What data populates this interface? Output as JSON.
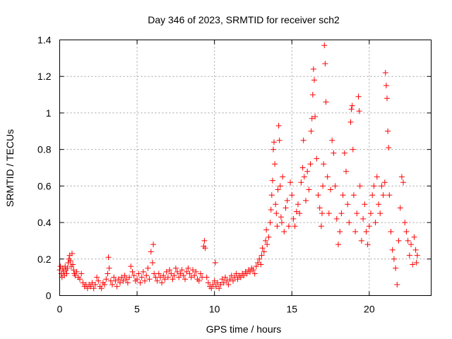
{
  "chart_data": {
    "type": "scatter",
    "title": "Day 346 of 2023, SRMTID for receiver sch2",
    "xlabel": "GPS time / hours",
    "ylabel": "SRMTID / TECUs",
    "xlim": [
      0,
      24
    ],
    "ylim": [
      0,
      1.4
    ],
    "xticks": [
      0,
      5,
      10,
      15,
      20
    ],
    "xtick_labels": [
      "0",
      "5",
      "10",
      "15",
      "20"
    ],
    "yticks": [
      0,
      0.2,
      0.4,
      0.6,
      0.8,
      1,
      1.2,
      1.4
    ],
    "ytick_labels": [
      "0",
      "0.2",
      "0.4",
      "0.6",
      "0.8",
      "1",
      "1.2",
      "1.4"
    ],
    "grid": true,
    "marker": "+",
    "marker_color": "#ff0000",
    "series": [
      {
        "name": "SRMTID",
        "points": [
          [
            0.0,
            0.14
          ],
          [
            0.05,
            0.16
          ],
          [
            0.1,
            0.12
          ],
          [
            0.15,
            0.1
          ],
          [
            0.2,
            0.15
          ],
          [
            0.25,
            0.13
          ],
          [
            0.3,
            0.11
          ],
          [
            0.35,
            0.16
          ],
          [
            0.4,
            0.14
          ],
          [
            0.45,
            0.12
          ],
          [
            0.5,
            0.15
          ],
          [
            0.55,
            0.18
          ],
          [
            0.6,
            0.2
          ],
          [
            0.65,
            0.22
          ],
          [
            0.7,
            0.19
          ],
          [
            0.75,
            0.16
          ],
          [
            0.8,
            0.23
          ],
          [
            0.85,
            0.17
          ],
          [
            0.9,
            0.14
          ],
          [
            0.95,
            0.12
          ],
          [
            1.0,
            0.11
          ],
          [
            1.1,
            0.13
          ],
          [
            1.2,
            0.1
          ],
          [
            1.3,
            0.09
          ],
          [
            1.4,
            0.12
          ],
          [
            1.5,
            0.07
          ],
          [
            1.6,
            0.05
          ],
          [
            1.7,
            0.06
          ],
          [
            1.8,
            0.04
          ],
          [
            1.9,
            0.06
          ],
          [
            2.0,
            0.05
          ],
          [
            2.1,
            0.07
          ],
          [
            2.2,
            0.04
          ],
          [
            2.3,
            0.06
          ],
          [
            2.4,
            0.1
          ],
          [
            2.5,
            0.08
          ],
          [
            2.6,
            0.05
          ],
          [
            2.7,
            0.04
          ],
          [
            2.8,
            0.07
          ],
          [
            2.9,
            0.06
          ],
          [
            3.0,
            0.09
          ],
          [
            3.1,
            0.12
          ],
          [
            3.15,
            0.21
          ],
          [
            3.2,
            0.15
          ],
          [
            3.3,
            0.08
          ],
          [
            3.4,
            0.06
          ],
          [
            3.5,
            0.1
          ],
          [
            3.6,
            0.08
          ],
          [
            3.7,
            0.05
          ],
          [
            3.8,
            0.09
          ],
          [
            3.9,
            0.07
          ],
          [
            4.0,
            0.1
          ],
          [
            4.1,
            0.08
          ],
          [
            4.2,
            0.11
          ],
          [
            4.3,
            0.09
          ],
          [
            4.4,
            0.07
          ],
          [
            4.5,
            0.1
          ],
          [
            4.6,
            0.16
          ],
          [
            4.7,
            0.13
          ],
          [
            4.8,
            0.11
          ],
          [
            4.9,
            0.08
          ],
          [
            5.0,
            0.09
          ],
          [
            5.1,
            0.12
          ],
          [
            5.2,
            0.07
          ],
          [
            5.3,
            0.1
          ],
          [
            5.4,
            0.13
          ],
          [
            5.5,
            0.08
          ],
          [
            5.6,
            0.11
          ],
          [
            5.7,
            0.15
          ],
          [
            5.8,
            0.09
          ],
          [
            5.9,
            0.24
          ],
          [
            6.0,
            0.18
          ],
          [
            6.05,
            0.28
          ],
          [
            6.1,
            0.12
          ],
          [
            6.2,
            0.1
          ],
          [
            6.3,
            0.08
          ],
          [
            6.4,
            0.12
          ],
          [
            6.5,
            0.1
          ],
          [
            6.6,
            0.07
          ],
          [
            6.7,
            0.11
          ],
          [
            6.8,
            0.09
          ],
          [
            6.9,
            0.13
          ],
          [
            7.0,
            0.1
          ],
          [
            7.1,
            0.14
          ],
          [
            7.2,
            0.12
          ],
          [
            7.3,
            0.09
          ],
          [
            7.4,
            0.11
          ],
          [
            7.5,
            0.15
          ],
          [
            7.6,
            0.13
          ],
          [
            7.7,
            0.1
          ],
          [
            7.8,
            0.12
          ],
          [
            7.9,
            0.14
          ],
          [
            8.0,
            0.11
          ],
          [
            8.1,
            0.09
          ],
          [
            8.2,
            0.13
          ],
          [
            8.3,
            0.15
          ],
          [
            8.4,
            0.12
          ],
          [
            8.5,
            0.1
          ],
          [
            8.6,
            0.14
          ],
          [
            8.7,
            0.11
          ],
          [
            8.8,
            0.13
          ],
          [
            8.9,
            0.09
          ],
          [
            9.0,
            0.08
          ],
          [
            9.1,
            0.12
          ],
          [
            9.2,
            0.1
          ],
          [
            9.3,
            0.27
          ],
          [
            9.35,
            0.3
          ],
          [
            9.4,
            0.26
          ],
          [
            9.5,
            0.1
          ],
          [
            9.6,
            0.07
          ],
          [
            9.7,
            0.05
          ],
          [
            9.8,
            0.04
          ],
          [
            9.9,
            0.06
          ],
          [
            10.0,
            0.08
          ],
          [
            10.05,
            0.18
          ],
          [
            10.1,
            0.05
          ],
          [
            10.2,
            0.07
          ],
          [
            10.3,
            0.04
          ],
          [
            10.4,
            0.06
          ],
          [
            10.5,
            0.09
          ],
          [
            10.6,
            0.07
          ],
          [
            10.7,
            0.1
          ],
          [
            10.8,
            0.08
          ],
          [
            10.9,
            0.06
          ],
          [
            11.0,
            0.09
          ],
          [
            11.1,
            0.11
          ],
          [
            11.2,
            0.08
          ],
          [
            11.3,
            0.1
          ],
          [
            11.4,
            0.12
          ],
          [
            11.5,
            0.09
          ],
          [
            11.6,
            0.11
          ],
          [
            11.7,
            0.1
          ],
          [
            11.8,
            0.12
          ],
          [
            11.9,
            0.11
          ],
          [
            12.0,
            0.13
          ],
          [
            12.1,
            0.12
          ],
          [
            12.2,
            0.14
          ],
          [
            12.3,
            0.13
          ],
          [
            12.4,
            0.15
          ],
          [
            12.5,
            0.14
          ],
          [
            12.6,
            0.12
          ],
          [
            12.7,
            0.16
          ],
          [
            12.8,
            0.18
          ],
          [
            12.9,
            0.2
          ],
          [
            13.0,
            0.17
          ],
          [
            13.05,
            0.22
          ],
          [
            13.1,
            0.26
          ],
          [
            13.2,
            0.24
          ],
          [
            13.3,
            0.3
          ],
          [
            13.35,
            0.36
          ],
          [
            13.4,
            0.28
          ],
          [
            13.5,
            0.32
          ],
          [
            13.6,
            0.4
          ],
          [
            13.65,
            0.47
          ],
          [
            13.7,
            0.55
          ],
          [
            13.75,
            0.63
          ],
          [
            13.8,
            0.8
          ],
          [
            13.85,
            0.84
          ],
          [
            13.9,
            0.72
          ],
          [
            13.95,
            0.5
          ],
          [
            14.0,
            0.45
          ],
          [
            14.05,
            0.38
          ],
          [
            14.1,
            0.58
          ],
          [
            14.15,
            0.93
          ],
          [
            14.2,
            0.85
          ],
          [
            14.25,
            0.6
          ],
          [
            14.3,
            0.43
          ],
          [
            14.35,
            0.4
          ],
          [
            14.4,
            0.65
          ],
          [
            14.5,
            0.35
          ],
          [
            14.6,
            0.48
          ],
          [
            14.7,
            0.52
          ],
          [
            14.8,
            0.38
          ],
          [
            14.9,
            0.62
          ],
          [
            15.0,
            0.55
          ],
          [
            15.1,
            0.42
          ],
          [
            15.2,
            0.38
          ],
          [
            15.3,
            0.46
          ],
          [
            15.4,
            0.5
          ],
          [
            15.5,
            0.45
          ],
          [
            15.6,
            0.62
          ],
          [
            15.7,
            0.7
          ],
          [
            15.75,
            0.85
          ],
          [
            15.8,
            0.65
          ],
          [
            15.9,
            0.52
          ],
          [
            16.0,
            0.68
          ],
          [
            16.1,
            0.58
          ],
          [
            16.2,
            0.72
          ],
          [
            16.25,
            0.9
          ],
          [
            16.3,
            0.97
          ],
          [
            16.35,
            1.1
          ],
          [
            16.4,
            1.24
          ],
          [
            16.45,
            1.18
          ],
          [
            16.5,
            0.98
          ],
          [
            16.6,
            0.75
          ],
          [
            16.7,
            0.55
          ],
          [
            16.8,
            0.48
          ],
          [
            16.9,
            0.38
          ],
          [
            16.95,
            0.45
          ],
          [
            17.0,
            0.6
          ],
          [
            17.05,
            0.72
          ],
          [
            17.1,
            1.37
          ],
          [
            17.15,
            1.27
          ],
          [
            17.2,
            1.06
          ],
          [
            17.3,
            0.65
          ],
          [
            17.4,
            0.45
          ],
          [
            17.5,
            0.58
          ],
          [
            17.6,
            0.85
          ],
          [
            17.7,
            0.78
          ],
          [
            17.8,
            0.6
          ],
          [
            17.9,
            0.42
          ],
          [
            18.0,
            0.28
          ],
          [
            18.1,
            0.35
          ],
          [
            18.2,
            0.45
          ],
          [
            18.3,
            0.55
          ],
          [
            18.4,
            0.78
          ],
          [
            18.5,
            0.68
          ],
          [
            18.6,
            0.5
          ],
          [
            18.7,
            0.4
          ],
          [
            18.8,
            0.95
          ],
          [
            18.85,
            1.02
          ],
          [
            18.9,
            1.04
          ],
          [
            18.95,
            0.8
          ],
          [
            19.0,
            0.55
          ],
          [
            19.1,
            0.35
          ],
          [
            19.2,
            0.45
          ],
          [
            19.3,
            1.09
          ],
          [
            19.35,
            1.01
          ],
          [
            19.4,
            0.6
          ],
          [
            19.5,
            0.3
          ],
          [
            19.6,
            0.42
          ],
          [
            19.7,
            0.5
          ],
          [
            19.8,
            0.35
          ],
          [
            19.9,
            0.28
          ],
          [
            20.0,
            0.38
          ],
          [
            20.1,
            0.45
          ],
          [
            20.2,
            0.55
          ],
          [
            20.3,
            0.6
          ],
          [
            20.4,
            0.4
          ],
          [
            20.5,
            0.65
          ],
          [
            20.6,
            0.5
          ],
          [
            20.7,
            0.45
          ],
          [
            20.8,
            0.6
          ],
          [
            20.9,
            0.55
          ],
          [
            21.0,
            0.62
          ],
          [
            21.05,
            1.22
          ],
          [
            21.1,
            1.15
          ],
          [
            21.15,
            1.08
          ],
          [
            21.2,
            0.9
          ],
          [
            21.25,
            0.81
          ],
          [
            21.3,
            0.55
          ],
          [
            21.4,
            0.35
          ],
          [
            21.5,
            0.25
          ],
          [
            21.6,
            0.2
          ],
          [
            21.7,
            0.15
          ],
          [
            21.8,
            0.06
          ],
          [
            21.9,
            0.3
          ],
          [
            22.0,
            0.48
          ],
          [
            22.1,
            0.65
          ],
          [
            22.2,
            0.62
          ],
          [
            22.3,
            0.4
          ],
          [
            22.4,
            0.35
          ],
          [
            22.5,
            0.3
          ],
          [
            22.6,
            0.22
          ],
          [
            22.7,
            0.28
          ],
          [
            22.8,
            0.17
          ],
          [
            22.9,
            0.32
          ],
          [
            23.0,
            0.25
          ],
          [
            23.05,
            0.18
          ],
          [
            23.1,
            0.22
          ]
        ]
      }
    ]
  }
}
